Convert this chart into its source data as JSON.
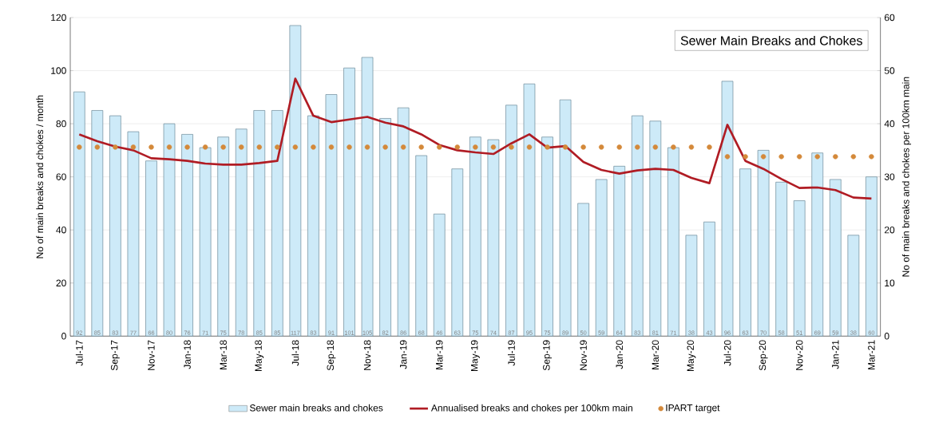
{
  "chart_data": {
    "type": "bar",
    "title": "Sewer Main Breaks and Chokes",
    "ylabel": "No of main breaks and chokes / month",
    "y2label": "No of main breaks and chokes per 100km main",
    "categories": [
      "Jul-17",
      null,
      "Sep-17",
      null,
      "Nov-17",
      null,
      "Jan-18",
      null,
      "Mar-18",
      null,
      "May-18",
      null,
      "Jul-18",
      null,
      "Sep-18",
      null,
      "Nov-18",
      null,
      "Jan-19",
      null,
      "Mar-19",
      null,
      "May-19",
      null,
      "Jul-19",
      null,
      "Sep-19",
      null,
      "Nov-19",
      null,
      "Jan-20",
      null,
      "Mar-20",
      null,
      "May-20",
      null,
      "Jul-20",
      null,
      "Sep-20",
      null,
      "Nov-20",
      null,
      "Jan-21",
      null,
      "Mar-21"
    ],
    "series": [
      {
        "name": "Sewer main breaks and chokes",
        "color": "#cdeaf8",
        "values": [
          92,
          85,
          83,
          77,
          66,
          80,
          76,
          71,
          75,
          78,
          85,
          85,
          117,
          83,
          91,
          101,
          105,
          82,
          86,
          68,
          46,
          63,
          75,
          74,
          87,
          95,
          75,
          89,
          50,
          59,
          64,
          83,
          81,
          71,
          38,
          43,
          96,
          63,
          70,
          58,
          51,
          69,
          59,
          38,
          60
        ],
        "value_labels": [
          "92",
          "85",
          "83",
          "77",
          "66",
          "80",
          "76",
          "71",
          "75",
          "78",
          "85",
          "85",
          "117",
          "83",
          "91",
          "101",
          "105",
          "82",
          "86",
          "68",
          "46",
          "63",
          "75",
          "74",
          "87",
          "95",
          "75",
          "89",
          "50",
          "59",
          "64",
          "83",
          "81",
          "71",
          "38",
          "43",
          "96",
          "63",
          "70",
          "58",
          "51",
          "69",
          "59",
          "38",
          "60"
        ]
      },
      {
        "name": "Annualised breaks and chokes per 100km main",
        "type": "line",
        "axis": "y2",
        "color": "#b01c24",
        "values": [
          38,
          36.7,
          35.7,
          35,
          33.5,
          33.3,
          33,
          32.5,
          32.3,
          32.3,
          32.6,
          33,
          48.5,
          41.5,
          40.3,
          40.8,
          41.3,
          40.2,
          39.5,
          38,
          36,
          35,
          34.6,
          34.3,
          36.3,
          38,
          35.5,
          35.8,
          32.8,
          31.3,
          30.6,
          31.2,
          31.5,
          31.3,
          29.8,
          28.8,
          39.8,
          33,
          31.5,
          29.6,
          27.9,
          28,
          27.5,
          26.1,
          25.9
        ]
      },
      {
        "name": "IPART target",
        "type": "scatter",
        "axis": "y2",
        "marker": "circle",
        "color": "#d4893a",
        "values": [
          35.6,
          35.6,
          35.6,
          35.6,
          35.6,
          35.6,
          35.6,
          35.6,
          35.6,
          35.6,
          35.6,
          35.6,
          35.6,
          35.6,
          35.6,
          35.6,
          35.6,
          35.6,
          35.6,
          35.6,
          35.6,
          35.6,
          35.6,
          35.6,
          35.6,
          35.6,
          35.6,
          35.6,
          35.6,
          35.6,
          35.6,
          35.6,
          35.6,
          35.6,
          35.6,
          35.6,
          33.8,
          33.8,
          33.8,
          33.8,
          33.8,
          33.8,
          33.8,
          33.8,
          33.8
        ]
      }
    ],
    "ylim": [
      0,
      120
    ],
    "yticks": [
      0,
      20,
      40,
      60,
      80,
      100,
      120
    ],
    "y2lim": [
      0,
      60
    ],
    "y2ticks": [
      0,
      10,
      20,
      30,
      40,
      50,
      60
    ],
    "grid": "y",
    "legend": "bottom"
  }
}
